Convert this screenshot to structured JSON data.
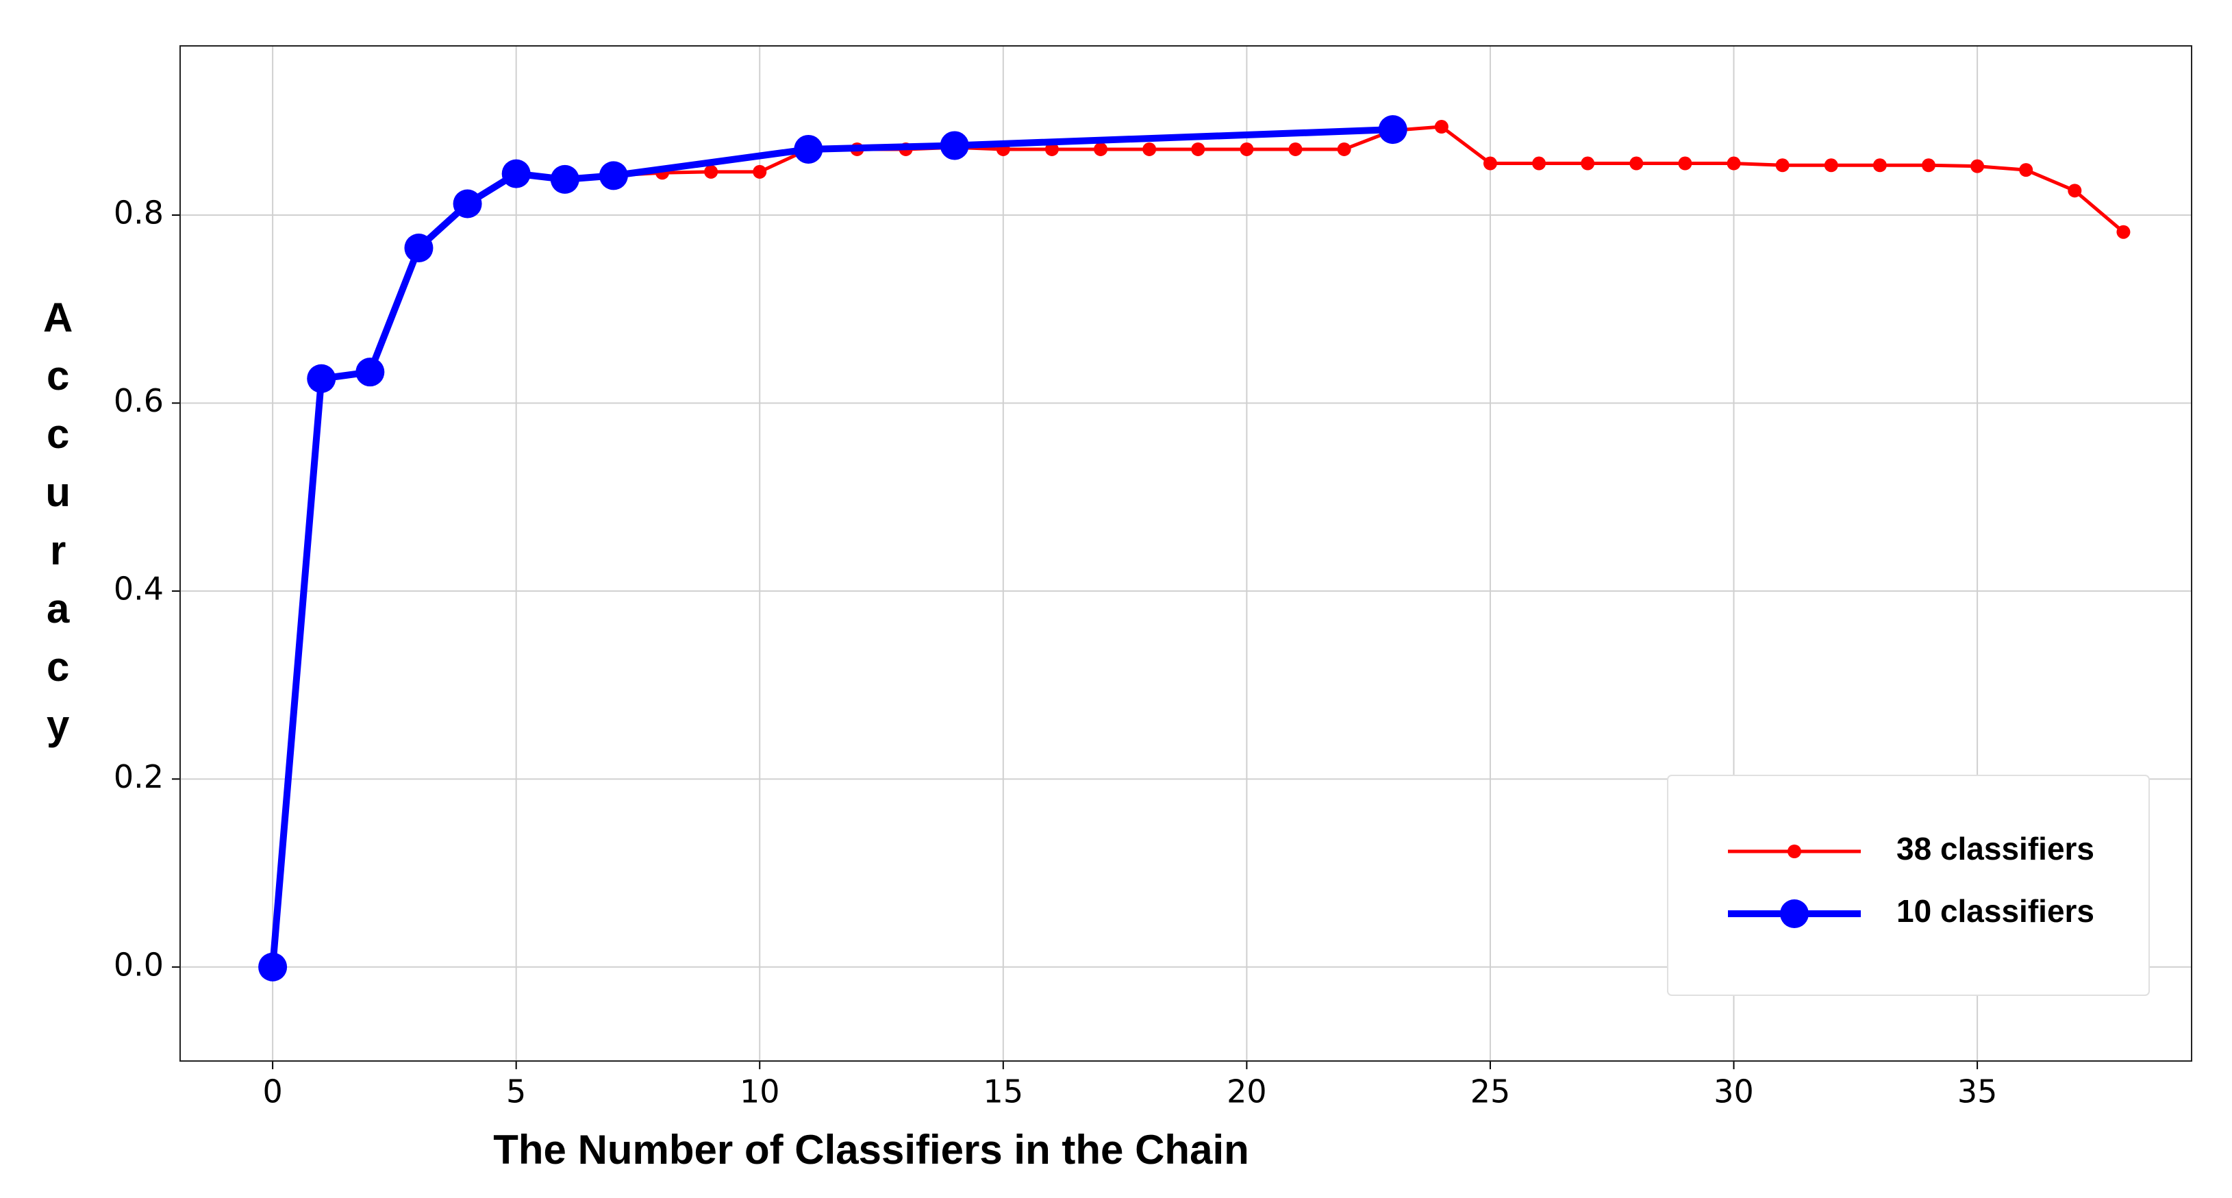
{
  "chart_data": {
    "type": "line",
    "xlabel": "The Number of Classifiers in the Chain",
    "ylabel": "Accuracy",
    "xlim": [
      -1.9,
      39.4
    ],
    "ylim": [
      -0.1,
      0.98
    ],
    "xticks": [
      0,
      5,
      10,
      15,
      20,
      25,
      30,
      35
    ],
    "yticks": [
      {
        "value": 0,
        "label": "0.0"
      },
      0.2,
      0.4,
      0.6,
      0.8
    ],
    "grid": true,
    "legend": "lower right",
    "series": [
      {
        "name": "38 classifiers",
        "color": "#ff0000",
        "x": [
          0,
          1,
          2,
          3,
          4,
          5,
          6,
          7,
          8,
          9,
          10,
          11,
          12,
          13,
          14,
          15,
          16,
          17,
          18,
          19,
          20,
          21,
          22,
          23,
          24,
          25,
          26,
          27,
          28,
          29,
          30,
          31,
          32,
          33,
          34,
          35,
          36,
          37,
          38
        ],
        "values": [
          0,
          0.626,
          0.633,
          0.765,
          0.812,
          0.844,
          0.838,
          0.842,
          0.845,
          0.846,
          0.846,
          0.87,
          0.87,
          0.87,
          0.872,
          0.87,
          0.87,
          0.87,
          0.87,
          0.87,
          0.87,
          0.87,
          0.87,
          0.89,
          0.894,
          0.855,
          0.855,
          0.855,
          0.855,
          0.855,
          0.855,
          0.853,
          0.853,
          0.853,
          0.853,
          0.852,
          0.848,
          0.826,
          0.782
        ]
      },
      {
        "name": "10 classifiers",
        "color": "#0000ff",
        "x": [
          0,
          1,
          2,
          3,
          4,
          5,
          6,
          7,
          11,
          14,
          23
        ],
        "values": [
          0,
          0.626,
          0.633,
          0.765,
          0.812,
          0.844,
          0.838,
          0.842,
          0.87,
          0.874,
          0.891
        ]
      }
    ]
  }
}
